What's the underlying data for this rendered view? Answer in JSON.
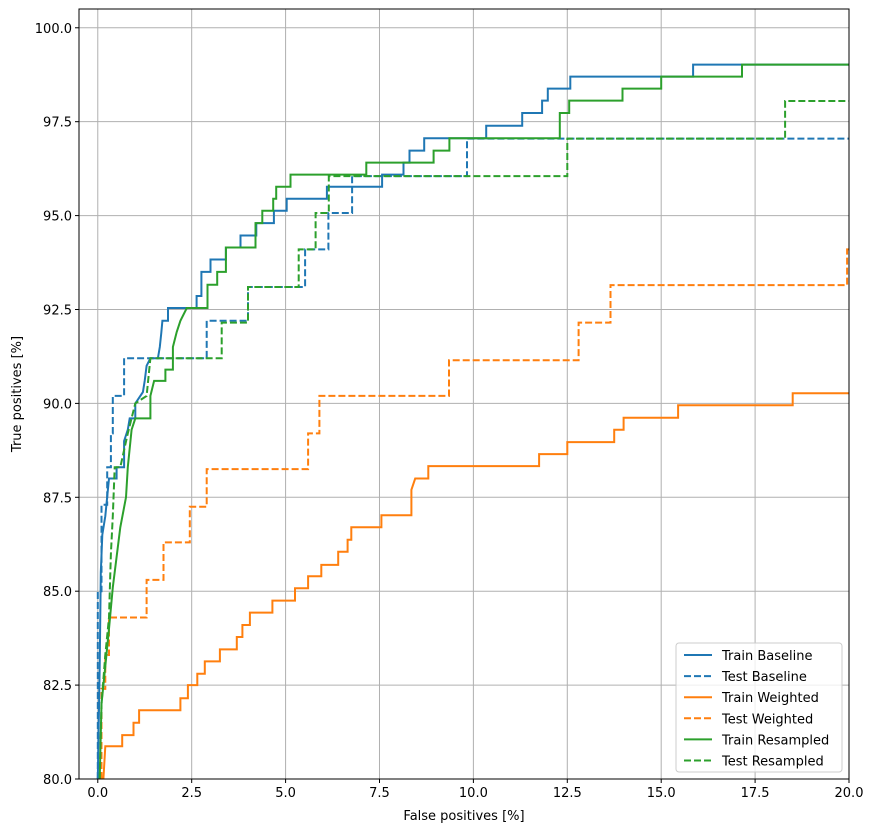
{
  "chart_data": {
    "type": "line",
    "title": "",
    "xlabel": "False positives [%]",
    "ylabel": "True positives [%]",
    "xlim": [
      -0.5,
      20
    ],
    "ylim": [
      80,
      100.5
    ],
    "grid": true,
    "legend_placement": "lower-right",
    "xticks": [
      "0.0",
      "2.5",
      "5.0",
      "7.5",
      "10.0",
      "12.5",
      "15.0",
      "17.5",
      "20.0"
    ],
    "yticks": [
      "80.0",
      "82.5",
      "85.0",
      "87.5",
      "90.0",
      "92.5",
      "95.0",
      "97.5",
      "100.0"
    ],
    "series": [
      {
        "name": "Train Baseline",
        "color": "#1f77b4",
        "dash": false,
        "points": [
          [
            0,
            80
          ],
          [
            0.05,
            83
          ],
          [
            0.08,
            85.5
          ],
          [
            0.12,
            86.5
          ],
          [
            0.2,
            87
          ],
          [
            0.3,
            88
          ],
          [
            0.5,
            88
          ],
          [
            0.5,
            88.3
          ],
          [
            0.7,
            88.3
          ],
          [
            0.7,
            89
          ],
          [
            0.8,
            89.3
          ],
          [
            0.85,
            89.6
          ],
          [
            1.0,
            89.6
          ],
          [
            1.0,
            90
          ],
          [
            1.2,
            90.3
          ],
          [
            1.25,
            90.6
          ],
          [
            1.3,
            91
          ],
          [
            1.4,
            91.2
          ],
          [
            1.6,
            91.2
          ],
          [
            1.65,
            91.5
          ],
          [
            1.69,
            91.88
          ],
          [
            1.72,
            92.2
          ],
          [
            1.87,
            92.2
          ],
          [
            1.87,
            92.54
          ],
          [
            2.63,
            92.54
          ],
          [
            2.63,
            92.86
          ],
          [
            2.76,
            92.86
          ],
          [
            2.76,
            93.5
          ],
          [
            3.0,
            93.5
          ],
          [
            3.0,
            93.83
          ],
          [
            3.41,
            93.83
          ],
          [
            3.41,
            94.15
          ],
          [
            3.8,
            94.15
          ],
          [
            3.8,
            94.47
          ],
          [
            4.22,
            94.47
          ],
          [
            4.22,
            94.8
          ],
          [
            4.69,
            94.8
          ],
          [
            4.69,
            95.13
          ],
          [
            5.03,
            95.13
          ],
          [
            5.03,
            95.45
          ],
          [
            6.1,
            95.45
          ],
          [
            6.1,
            95.77
          ],
          [
            7.57,
            95.77
          ],
          [
            7.57,
            96.09
          ],
          [
            8.14,
            96.09
          ],
          [
            8.14,
            96.41
          ],
          [
            8.3,
            96.41
          ],
          [
            8.3,
            96.73
          ],
          [
            8.69,
            96.73
          ],
          [
            8.69,
            97.06
          ],
          [
            10.34,
            97.06
          ],
          [
            10.34,
            97.39
          ],
          [
            11.3,
            97.39
          ],
          [
            11.3,
            97.73
          ],
          [
            11.83,
            97.73
          ],
          [
            11.83,
            98.06
          ],
          [
            11.98,
            98.06
          ],
          [
            11.98,
            98.38
          ],
          [
            12.58,
            98.38
          ],
          [
            12.58,
            98.7
          ],
          [
            15.85,
            98.7
          ],
          [
            15.85,
            99.02
          ],
          [
            20,
            99.02
          ]
        ]
      },
      {
        "name": "Test Baseline",
        "color": "#1f77b4",
        "dash": true,
        "points": [
          [
            0,
            80
          ],
          [
            0,
            85
          ],
          [
            0.1,
            85
          ],
          [
            0.1,
            87.3
          ],
          [
            0.25,
            87.3
          ],
          [
            0.25,
            88.3
          ],
          [
            0.35,
            88.3
          ],
          [
            0.35,
            89.2
          ],
          [
            0.4,
            89.2
          ],
          [
            0.4,
            90.2
          ],
          [
            0.7,
            90.2
          ],
          [
            0.7,
            91.2
          ],
          [
            2.9,
            91.2
          ],
          [
            2.9,
            92.2
          ],
          [
            4.0,
            92.2
          ],
          [
            4.0,
            93.1
          ],
          [
            5.52,
            93.1
          ],
          [
            5.52,
            94.1
          ],
          [
            6.14,
            94.1
          ],
          [
            6.14,
            95.07
          ],
          [
            6.77,
            95.07
          ],
          [
            6.77,
            96.05
          ],
          [
            9.83,
            96.05
          ],
          [
            9.83,
            97.05
          ],
          [
            20,
            97.05
          ]
        ]
      },
      {
        "name": "Train Weighted",
        "color": "#ff7f0e",
        "dash": false,
        "points": [
          [
            0.15,
            80
          ],
          [
            0.2,
            80.87
          ],
          [
            0.65,
            80.87
          ],
          [
            0.65,
            81.17
          ],
          [
            0.95,
            81.17
          ],
          [
            0.95,
            81.5
          ],
          [
            1.1,
            81.5
          ],
          [
            1.1,
            81.83
          ],
          [
            2.2,
            81.83
          ],
          [
            2.2,
            82.15
          ],
          [
            2.4,
            82.15
          ],
          [
            2.4,
            82.5
          ],
          [
            2.65,
            82.5
          ],
          [
            2.65,
            82.8
          ],
          [
            2.85,
            82.8
          ],
          [
            2.85,
            83.13
          ],
          [
            3.25,
            83.13
          ],
          [
            3.25,
            83.45
          ],
          [
            3.7,
            83.45
          ],
          [
            3.7,
            83.78
          ],
          [
            3.85,
            83.78
          ],
          [
            3.85,
            84.1
          ],
          [
            4.05,
            84.1
          ],
          [
            4.05,
            84.43
          ],
          [
            4.65,
            84.43
          ],
          [
            4.65,
            84.75
          ],
          [
            5.25,
            84.75
          ],
          [
            5.25,
            85.08
          ],
          [
            5.6,
            85.08
          ],
          [
            5.6,
            85.4
          ],
          [
            5.95,
            85.4
          ],
          [
            5.95,
            85.7
          ],
          [
            6.4,
            85.7
          ],
          [
            6.4,
            86.05
          ],
          [
            6.65,
            86.05
          ],
          [
            6.65,
            86.37
          ],
          [
            6.75,
            86.37
          ],
          [
            6.75,
            86.7
          ],
          [
            7.55,
            86.7
          ],
          [
            7.55,
            87.02
          ],
          [
            8.35,
            87.02
          ],
          [
            8.35,
            87.7
          ],
          [
            8.45,
            88.0
          ],
          [
            8.8,
            88.0
          ],
          [
            8.8,
            88.33
          ],
          [
            11.75,
            88.33
          ],
          [
            11.75,
            88.65
          ],
          [
            12.5,
            88.65
          ],
          [
            12.5,
            88.97
          ],
          [
            13.75,
            88.97
          ],
          [
            13.75,
            89.3
          ],
          [
            14.0,
            89.3
          ],
          [
            14.0,
            89.62
          ],
          [
            15.45,
            89.62
          ],
          [
            15.45,
            89.95
          ],
          [
            18.5,
            89.95
          ],
          [
            18.5,
            90.27
          ],
          [
            20,
            90.27
          ]
        ]
      },
      {
        "name": "Test Weighted",
        "color": "#ff7f0e",
        "dash": true,
        "points": [
          [
            0.1,
            80
          ],
          [
            0.1,
            82.4
          ],
          [
            0.2,
            82.4
          ],
          [
            0.2,
            83.3
          ],
          [
            0.3,
            83.3
          ],
          [
            0.3,
            84.3
          ],
          [
            1.3,
            84.3
          ],
          [
            1.3,
            85.3
          ],
          [
            1.75,
            85.3
          ],
          [
            1.75,
            86.3
          ],
          [
            2.45,
            86.3
          ],
          [
            2.45,
            87.25
          ],
          [
            2.9,
            87.25
          ],
          [
            2.9,
            88.25
          ],
          [
            5.6,
            88.25
          ],
          [
            5.6,
            89.2
          ],
          [
            5.9,
            89.2
          ],
          [
            5.9,
            90.2
          ],
          [
            9.35,
            90.2
          ],
          [
            9.35,
            91.15
          ],
          [
            12.8,
            91.15
          ],
          [
            12.8,
            92.15
          ],
          [
            13.65,
            92.15
          ],
          [
            13.65,
            93.15
          ],
          [
            19.95,
            93.15
          ],
          [
            19.95,
            94.1
          ],
          [
            20,
            94.1
          ]
        ]
      },
      {
        "name": "Train Resampled",
        "color": "#2ca02c",
        "dash": false,
        "points": [
          [
            0.05,
            80
          ],
          [
            0.1,
            82
          ],
          [
            0.2,
            83
          ],
          [
            0.3,
            84
          ],
          [
            0.4,
            85.1
          ],
          [
            0.6,
            86.7
          ],
          [
            0.75,
            87.5
          ],
          [
            0.8,
            88.3
          ],
          [
            0.9,
            89.3
          ],
          [
            1.0,
            89.6
          ],
          [
            1.4,
            89.6
          ],
          [
            1.4,
            90.2
          ],
          [
            1.5,
            90.6
          ],
          [
            1.8,
            90.6
          ],
          [
            1.8,
            90.9
          ],
          [
            2.0,
            90.9
          ],
          [
            2.0,
            91.5
          ],
          [
            2.1,
            91.9
          ],
          [
            2.2,
            92.2
          ],
          [
            2.37,
            92.54
          ],
          [
            2.92,
            92.54
          ],
          [
            2.92,
            93.16
          ],
          [
            3.18,
            93.16
          ],
          [
            3.18,
            93.5
          ],
          [
            3.41,
            93.5
          ],
          [
            3.41,
            94.15
          ],
          [
            4.2,
            94.15
          ],
          [
            4.2,
            94.8
          ],
          [
            4.38,
            94.8
          ],
          [
            4.38,
            95.13
          ],
          [
            4.67,
            95.13
          ],
          [
            4.67,
            95.45
          ],
          [
            4.75,
            95.45
          ],
          [
            4.75,
            95.77
          ],
          [
            5.13,
            95.77
          ],
          [
            5.13,
            96.09
          ],
          [
            7.15,
            96.09
          ],
          [
            7.15,
            96.41
          ],
          [
            8.94,
            96.41
          ],
          [
            8.94,
            96.73
          ],
          [
            9.36,
            96.73
          ],
          [
            9.36,
            97.06
          ],
          [
            12.3,
            97.06
          ],
          [
            12.3,
            97.73
          ],
          [
            12.55,
            97.73
          ],
          [
            12.55,
            98.06
          ],
          [
            13.97,
            98.06
          ],
          [
            13.97,
            98.38
          ],
          [
            15.0,
            98.38
          ],
          [
            15.0,
            98.7
          ],
          [
            17.15,
            98.7
          ],
          [
            17.15,
            99.02
          ],
          [
            20,
            99.02
          ]
        ]
      },
      {
        "name": "Test Resampled",
        "color": "#2ca02c",
        "dash": true,
        "points": [
          [
            0.05,
            80
          ],
          [
            0.1,
            82
          ],
          [
            0.2,
            83.3
          ],
          [
            0.3,
            84.3
          ],
          [
            0.35,
            86
          ],
          [
            0.4,
            87
          ],
          [
            0.45,
            88.3
          ],
          [
            0.6,
            88.3
          ],
          [
            0.8,
            89.2
          ],
          [
            1.0,
            90
          ],
          [
            1.3,
            90.2
          ],
          [
            1.4,
            91.2
          ],
          [
            3.3,
            91.2
          ],
          [
            3.3,
            92.15
          ],
          [
            4.0,
            92.15
          ],
          [
            4.0,
            93.1
          ],
          [
            5.35,
            93.1
          ],
          [
            5.35,
            94.1
          ],
          [
            5.8,
            94.1
          ],
          [
            5.8,
            95.07
          ],
          [
            6.15,
            95.07
          ],
          [
            6.15,
            96.05
          ],
          [
            12.5,
            96.05
          ],
          [
            12.5,
            97.05
          ],
          [
            18.3,
            97.05
          ],
          [
            18.3,
            98.05
          ],
          [
            20,
            98.05
          ]
        ]
      }
    ]
  }
}
